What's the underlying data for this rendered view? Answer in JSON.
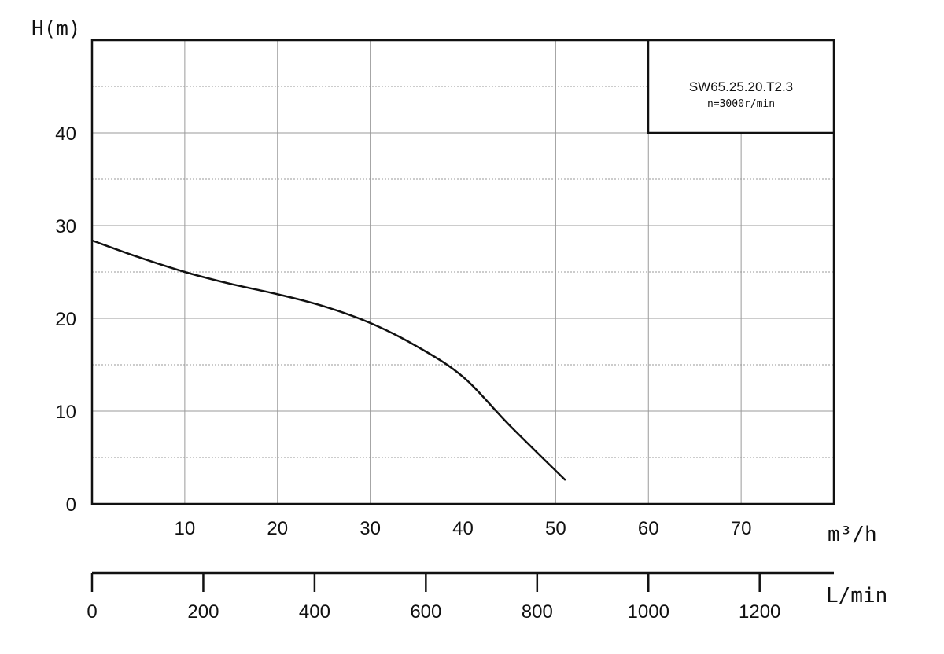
{
  "chart_data": {
    "type": "line",
    "ylabel": "H(m)",
    "xlabel": "m³/h",
    "secondary_xlabel": "L/min",
    "xlim": [
      0,
      80
    ],
    "ylim": [
      0,
      50
    ],
    "secondary_xlim": [
      0,
      1333.33
    ],
    "grid": true,
    "legend_position": "top-right",
    "legend": {
      "title": "SW65.25.20.T2.3",
      "subtitle": "n=3000r/min"
    },
    "x_ticks": [
      10,
      20,
      30,
      40,
      50,
      60,
      70
    ],
    "x_tick_labels": [
      "10",
      "20",
      "30",
      "40",
      "50",
      "60",
      "70"
    ],
    "y_ticks": [
      0,
      10,
      20,
      30,
      40
    ],
    "y_tick_labels": [
      "0",
      "10",
      "20",
      "30",
      "40"
    ],
    "secondary_x_ticks": [
      0,
      200,
      400,
      600,
      800,
      1000,
      1200
    ],
    "secondary_x_tick_labels": [
      "0",
      "200",
      "400",
      "600",
      "800",
      "1000",
      "1200"
    ],
    "series": [
      {
        "x": [
          0,
          5,
          10,
          15,
          20,
          25,
          30,
          35,
          40,
          45,
          51
        ],
        "y": [
          28.4,
          26.6,
          25.0,
          23.7,
          22.6,
          21.3,
          19.5,
          17.0,
          13.7,
          8.5,
          2.6
        ]
      }
    ]
  }
}
